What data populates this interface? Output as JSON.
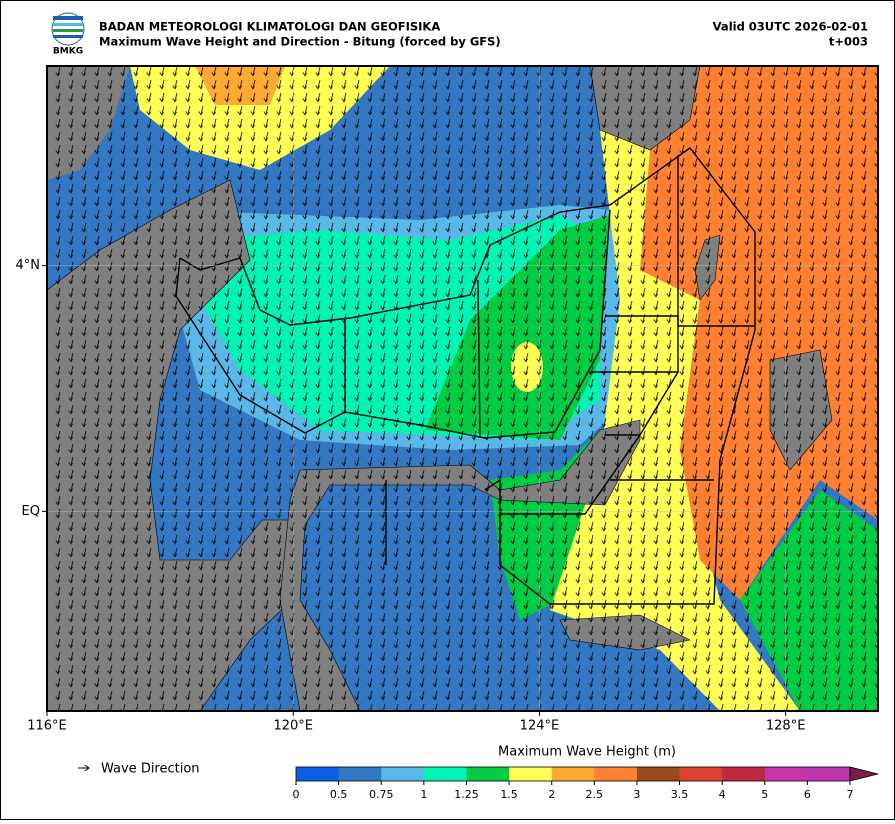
{
  "header": {
    "logo_text": "BMKG",
    "title": "BADAN METEOROLOGI KLIMATOLOGI DAN GEOFISIKA",
    "subtitle": "Maximum Wave Height and Direction - Bitung (forced by GFS)",
    "valid": "Valid 03UTC 2026-02-01",
    "step": "t+003"
  },
  "map": {
    "lon_range": [
      116,
      129.5
    ],
    "lat_range": [
      -3.25,
      7.25
    ],
    "lon_ticks": [
      {
        "value": 116,
        "label": "116°E"
      },
      {
        "value": 120,
        "label": "120°E"
      },
      {
        "value": 124,
        "label": "124°E"
      },
      {
        "value": 128,
        "label": "128°E"
      }
    ],
    "lat_ticks": [
      {
        "value": 4,
        "label": "4°N"
      },
      {
        "value": 0,
        "label": "EQ"
      }
    ]
  },
  "legend": {
    "arrow_label": "Wave Direction"
  },
  "colorbar": {
    "title": "Maximum Wave Height (m)",
    "ticks": [
      0,
      0.5,
      0.75,
      1,
      1.25,
      1.5,
      2,
      2.5,
      3,
      3.5,
      4,
      5,
      6,
      7
    ],
    "colors": [
      "#0a5fe8",
      "#3477c2",
      "#5ab8e8",
      "#00f5b4",
      "#00cc44",
      "#ffff55",
      "#ffaa33",
      "#ff8030",
      "#9a4a1a",
      "#e04030",
      "#c02840",
      "#cc33aa",
      "#c035b0"
    ],
    "extend_color": "#7a2040"
  }
}
